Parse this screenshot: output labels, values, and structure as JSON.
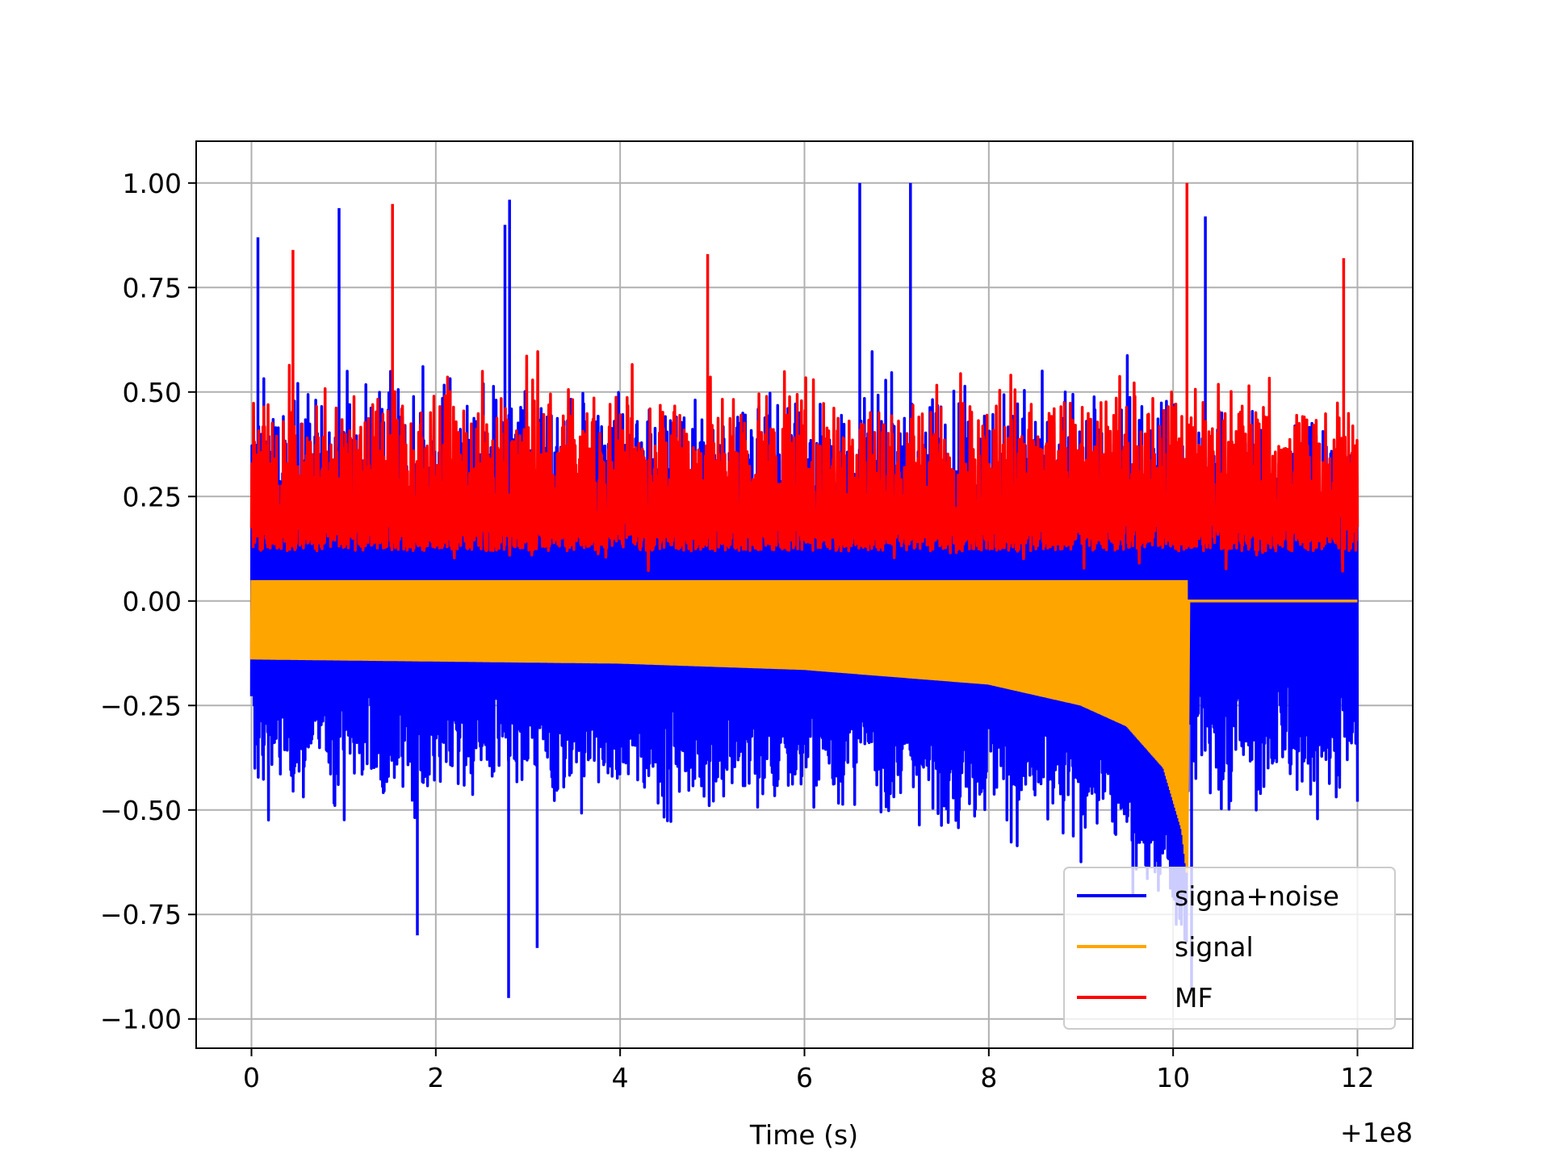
{
  "chart_data": {
    "type": "line",
    "title": "",
    "xlabel": "Time (s)",
    "ylabel": "",
    "x_offset_label": "+1e8",
    "xlim": [
      -0.6,
      12.6
    ],
    "ylim": [
      -1.07,
      1.1
    ],
    "xticks": [
      0,
      2,
      4,
      6,
      8,
      10,
      12
    ],
    "xtick_labels": [
      "0",
      "2",
      "4",
      "6",
      "8",
      "10",
      "12"
    ],
    "yticks": [
      1.0,
      0.75,
      0.5,
      0.25,
      0.0,
      -0.25,
      -0.5,
      -0.75,
      -1.0
    ],
    "ytick_labels": [
      "1.00",
      "0.75",
      "0.50",
      "0.25",
      "0.00",
      "−0.25",
      "−0.50",
      "−0.75",
      "−1.00"
    ],
    "grid": true,
    "legend_position": "lower right",
    "series": [
      {
        "name": "signa+noise",
        "color": "#0000ff",
        "x_range": [
          0,
          12
        ],
        "description_of_envelope": "noise band roughly between -0.6 and 0.6 with spikes reaching about ±1.0",
        "peaks": [
          {
            "x": 0.07,
            "y": 0.87
          },
          {
            "x": 0.95,
            "y": 0.94
          },
          {
            "x": 2.8,
            "y": 0.96
          },
          {
            "x": 2.75,
            "y": 0.9
          },
          {
            "x": 6.6,
            "y": 1.0
          },
          {
            "x": 7.15,
            "y": 1.0
          },
          {
            "x": 10.35,
            "y": 0.92
          },
          {
            "x": 2.79,
            "y": -0.95
          },
          {
            "x": 1.8,
            "y": -0.8
          },
          {
            "x": 3.1,
            "y": -0.83
          },
          {
            "x": 10.2,
            "y": -0.93
          }
        ]
      },
      {
        "name": "signal",
        "color": "#ffa500",
        "x_range": [
          0,
          10.2
        ],
        "description_of_envelope": "chirp oscillating from about -0.14 to 0.05, lower envelope dropping to about -0.65 near x=10.15, zero afterwards",
        "lower_envelope": [
          {
            "x": 0,
            "y": -0.14
          },
          {
            "x": 2,
            "y": -0.145
          },
          {
            "x": 4,
            "y": -0.15
          },
          {
            "x": 6,
            "y": -0.165
          },
          {
            "x": 8,
            "y": -0.2
          },
          {
            "x": 9,
            "y": -0.25
          },
          {
            "x": 9.5,
            "y": -0.3
          },
          {
            "x": 9.9,
            "y": -0.4
          },
          {
            "x": 10.1,
            "y": -0.55
          },
          {
            "x": 10.15,
            "y": -0.65
          }
        ],
        "upper_envelope": [
          {
            "x": 0,
            "y": 0.05
          },
          {
            "x": 10.15,
            "y": 0.05
          }
        ]
      },
      {
        "name": "MF",
        "color": "#ff0000",
        "x_range": [
          0,
          12
        ],
        "description_of_envelope": "matched filter output between about 0.05 and 0.8 with a maximum of 1.0 near x=10.15",
        "peaks": [
          {
            "x": 1.53,
            "y": 0.95
          },
          {
            "x": 10.15,
            "y": 1.0
          },
          {
            "x": 11.85,
            "y": 0.82
          },
          {
            "x": 0.45,
            "y": 0.84
          },
          {
            "x": 4.95,
            "y": 0.83
          }
        ]
      }
    ]
  }
}
